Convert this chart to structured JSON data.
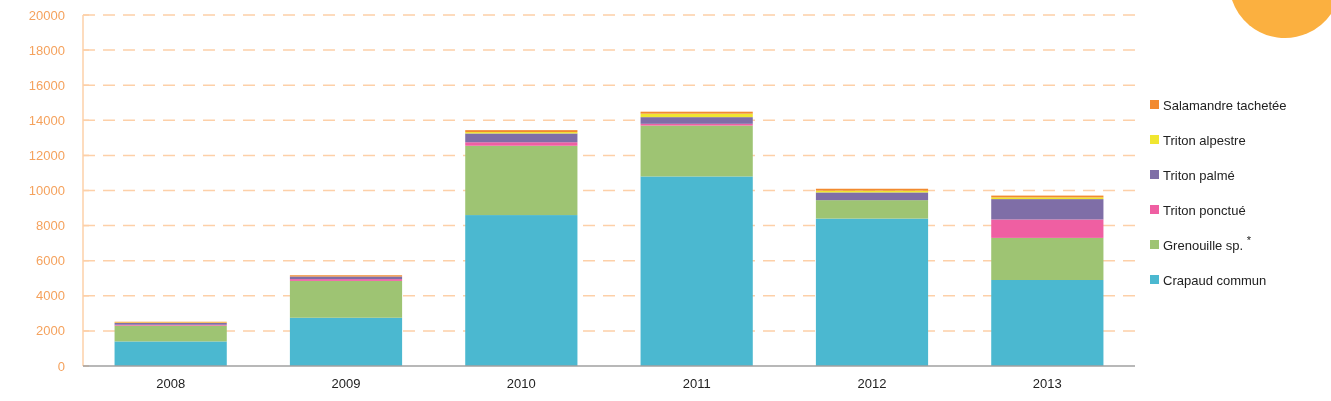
{
  "chart_data": {
    "type": "bar",
    "stacked": true,
    "categories": [
      "2008",
      "2009",
      "2010",
      "2011",
      "2012",
      "2013"
    ],
    "series": [
      {
        "name": "Crapaud commun",
        "color": "#4bb8d0",
        "values": [
          1400,
          2750,
          8600,
          10800,
          8400,
          4900
        ]
      },
      {
        "name": "Grenouille sp. $^{*}$",
        "color": "#9ec473",
        "values": [
          900,
          2100,
          3950,
          2900,
          1050,
          2400
        ]
      },
      {
        "name": "Triton ponctué",
        "color": "#ef5fa2",
        "values": [
          50,
          100,
          200,
          100,
          null,
          1050
        ]
      },
      {
        "name": "Triton palmé",
        "color": "#7f6ea7",
        "values": [
          100,
          150,
          500,
          380,
          440,
          1160
        ]
      },
      {
        "name": "Triton alpestre",
        "color": "#f0e630",
        "values": [
          30,
          null,
          80,
          200,
          100,
          100
        ]
      },
      {
        "name": "Salamandre tachetée",
        "color": "#f28a2f",
        "values": [
          40,
          70,
          110,
          110,
          110,
          100
        ]
      }
    ],
    "ylim": [
      0,
      20000
    ],
    "yticks": [
      0,
      2000,
      4000,
      6000,
      8000,
      10000,
      12000,
      14000,
      16000,
      18000,
      20000
    ],
    "grid": "y",
    "legend": "right"
  }
}
